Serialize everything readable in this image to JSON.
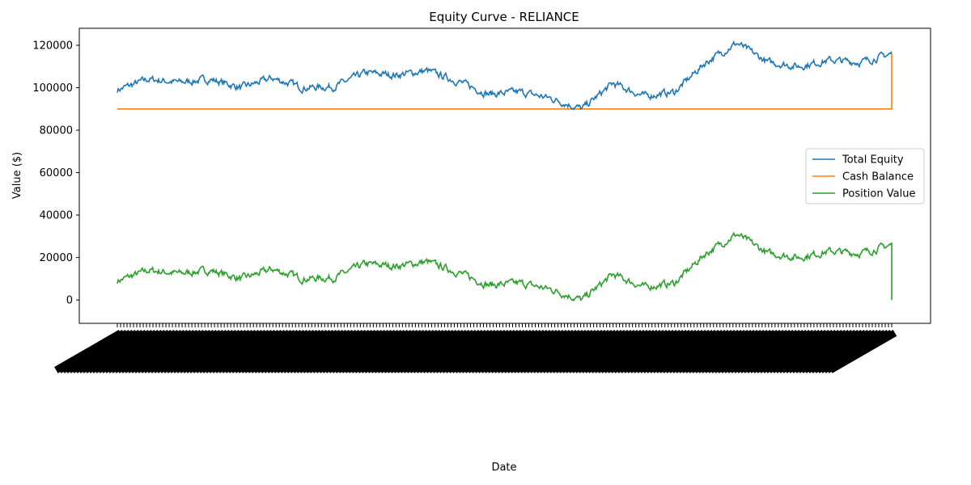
{
  "chart_data": {
    "type": "line",
    "title": "Equity Curve - RELIANCE",
    "xlabel": "Date",
    "ylabel": "Value ($)",
    "ylim": [
      -11000,
      128000
    ],
    "yticks": [
      0,
      20000,
      40000,
      60000,
      80000,
      100000,
      120000
    ],
    "ytick_labels": [
      "0",
      "20000",
      "40000",
      "60000",
      "80000",
      "100000",
      "120000"
    ],
    "grid": false,
    "legend_position": "center-right",
    "x": [
      0,
      4,
      8,
      12,
      16,
      20,
      24,
      28,
      32,
      36,
      40,
      44,
      48,
      52,
      56,
      60,
      64,
      68,
      72,
      76,
      80,
      84,
      88,
      92,
      96,
      100
    ],
    "series": [
      {
        "name": "Total Equity",
        "color": "#1f77b4",
        "values": [
          99000,
          104000,
          102500,
          104000,
          100000,
          104500,
          100000,
          100500,
          107000,
          106000,
          108000,
          103000,
          97000,
          98000,
          95000,
          90000,
          102000,
          96000,
          98000,
          112000,
          121000,
          112000,
          110000,
          113000,
          112000,
          116000
        ]
      },
      {
        "name": "Cash Balance",
        "color": "#ff7f0e",
        "values": [
          90000,
          90000,
          90000,
          90000,
          90000,
          90000,
          90000,
          90000,
          90000,
          90000,
          90000,
          90000,
          90000,
          90000,
          90000,
          90000,
          90000,
          90000,
          90000,
          90000,
          90000,
          90000,
          90000,
          90000,
          90000,
          116000
        ]
      },
      {
        "name": "Position Value",
        "color": "#2ca02c",
        "values": [
          9000,
          14000,
          12500,
          14000,
          10000,
          14500,
          10000,
          10500,
          17000,
          16000,
          18000,
          13000,
          7000,
          8000,
          5000,
          -1000,
          12000,
          6000,
          8000,
          22000,
          31000,
          22000,
          20000,
          23000,
          22000,
          0
        ]
      }
    ]
  }
}
